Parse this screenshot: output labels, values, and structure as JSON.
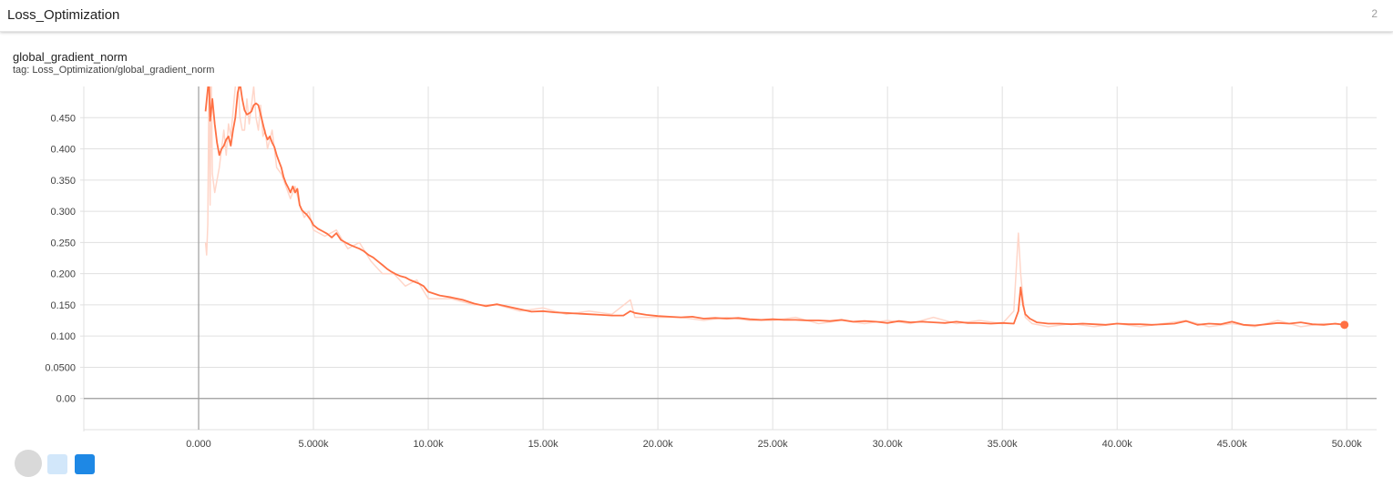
{
  "header": {
    "title": "Loss_Optimization",
    "count": "2"
  },
  "card": {
    "title": "global_gradient_norm",
    "tag": "tag: Loss_Optimization/global_gradient_norm"
  },
  "colors": {
    "smoothed": "#ff7043",
    "raw": "#ffd6c9",
    "grid": "#e0e0e0",
    "axis": "#9e9e9e"
  },
  "chart_data": {
    "type": "line",
    "title": "global_gradient_norm",
    "xlabel": "",
    "ylabel": "",
    "xlim": [
      -5000,
      51300
    ],
    "ylim": [
      -0.05,
      0.5
    ],
    "grid": true,
    "x_ticks": [
      0,
      5000,
      10000,
      15000,
      20000,
      25000,
      30000,
      35000,
      40000,
      45000,
      50000
    ],
    "x_tick_labels": [
      "0.000",
      "5.000k",
      "10.00k",
      "15.00k",
      "20.00k",
      "25.00k",
      "30.00k",
      "35.00k",
      "40.00k",
      "45.00k",
      "50.00k"
    ],
    "y_ticks": [
      0,
      0.05,
      0.1,
      0.15,
      0.2,
      0.25,
      0.3,
      0.35,
      0.4,
      0.45
    ],
    "y_tick_labels": [
      "0.00",
      "0.0500",
      "0.100",
      "0.150",
      "0.200",
      "0.250",
      "0.300",
      "0.350",
      "0.400",
      "0.450"
    ],
    "series": [
      {
        "style": "smoothed",
        "x": [
          300,
          450,
          500,
          600,
          700,
          800,
          900,
          1000,
          1100,
          1200,
          1300,
          1400,
          1500,
          1600,
          1700,
          1800,
          1900,
          2000,
          2100,
          2200,
          2300,
          2400,
          2500,
          2600,
          2700,
          2800,
          2900,
          3000,
          3100,
          3200,
          3300,
          3400,
          3500,
          3600,
          3700,
          3800,
          3900,
          4000,
          4100,
          4200,
          4300,
          4400,
          4500,
          4600,
          4700,
          4800,
          4900,
          5000,
          5200,
          5400,
          5600,
          5800,
          6000,
          6200,
          6400,
          6600,
          6800,
          7000,
          7200,
          7400,
          7600,
          7800,
          8000,
          8200,
          8400,
          8600,
          8800,
          9000,
          9200,
          9400,
          9600,
          9800,
          10000,
          10500,
          11000,
          11500,
          12000,
          12500,
          13000,
          13500,
          14000,
          14500,
          15000,
          15500,
          16000,
          16500,
          17000,
          17500,
          18000,
          18500,
          18800,
          19000,
          19500,
          20000,
          20500,
          21000,
          21500,
          22000,
          22500,
          23000,
          23500,
          24000,
          24500,
          25000,
          25500,
          26000,
          26500,
          27000,
          27500,
          28000,
          28500,
          29000,
          29500,
          30000,
          30500,
          31000,
          31500,
          32000,
          32500,
          33000,
          33500,
          34000,
          34500,
          35000,
          35500,
          35700,
          35800,
          35900,
          36000,
          36200,
          36500,
          37000,
          37500,
          38000,
          38500,
          39000,
          39500,
          40000,
          40500,
          41000,
          41500,
          42000,
          42500,
          43000,
          43500,
          44000,
          44500,
          45000,
          45500,
          46000,
          46500,
          47000,
          47500,
          48000,
          48500,
          49000,
          49500,
          49900
        ],
        "y": [
          0.46,
          0.515,
          0.445,
          0.48,
          0.44,
          0.41,
          0.39,
          0.4,
          0.405,
          0.415,
          0.42,
          0.405,
          0.43,
          0.45,
          0.49,
          0.505,
          0.48,
          0.462,
          0.455,
          0.457,
          0.46,
          0.47,
          0.473,
          0.47,
          0.455,
          0.44,
          0.425,
          0.415,
          0.42,
          0.41,
          0.403,
          0.39,
          0.38,
          0.37,
          0.355,
          0.345,
          0.338,
          0.33,
          0.34,
          0.33,
          0.336,
          0.31,
          0.302,
          0.298,
          0.295,
          0.29,
          0.285,
          0.278,
          0.272,
          0.268,
          0.264,
          0.258,
          0.265,
          0.254,
          0.25,
          0.246,
          0.243,
          0.24,
          0.236,
          0.23,
          0.226,
          0.22,
          0.214,
          0.208,
          0.203,
          0.199,
          0.196,
          0.194,
          0.19,
          0.187,
          0.184,
          0.18,
          0.171,
          0.165,
          0.162,
          0.158,
          0.152,
          0.148,
          0.151,
          0.147,
          0.143,
          0.139,
          0.14,
          0.138,
          0.137,
          0.136,
          0.135,
          0.134,
          0.133,
          0.133,
          0.14,
          0.137,
          0.134,
          0.132,
          0.131,
          0.13,
          0.131,
          0.128,
          0.129,
          0.128,
          0.129,
          0.127,
          0.126,
          0.127,
          0.126,
          0.126,
          0.125,
          0.125,
          0.124,
          0.126,
          0.123,
          0.124,
          0.123,
          0.121,
          0.124,
          0.122,
          0.123,
          0.122,
          0.121,
          0.123,
          0.121,
          0.121,
          0.12,
          0.121,
          0.12,
          0.14,
          0.178,
          0.15,
          0.135,
          0.128,
          0.122,
          0.12,
          0.12,
          0.119,
          0.12,
          0.119,
          0.118,
          0.12,
          0.119,
          0.119,
          0.118,
          0.119,
          0.12,
          0.124,
          0.118,
          0.12,
          0.119,
          0.123,
          0.118,
          0.117,
          0.119,
          0.121,
          0.12,
          0.122,
          0.119,
          0.118,
          0.12,
          0.118
        ]
      },
      {
        "style": "raw",
        "x": [
          300,
          350,
          400,
          450,
          500,
          550,
          600,
          700,
          800,
          900,
          1000,
          1100,
          1200,
          1300,
          1400,
          1500,
          1600,
          1700,
          1800,
          1900,
          2000,
          2100,
          2200,
          2300,
          2400,
          2500,
          2600,
          2700,
          2800,
          2900,
          3000,
          3200,
          3400,
          3600,
          3800,
          4000,
          4200,
          4400,
          4600,
          4800,
          5000,
          5500,
          6000,
          6500,
          7000,
          7500,
          8000,
          8500,
          9000,
          9500,
          10000,
          11000,
          12000,
          13000,
          14000,
          15000,
          16000,
          17000,
          18000,
          18800,
          19000,
          20000,
          21000,
          22000,
          23000,
          24000,
          25000,
          26000,
          27000,
          28000,
          29000,
          30000,
          31000,
          32000,
          33000,
          34000,
          35000,
          35500,
          35700,
          35800,
          35900,
          36000,
          36300,
          37000,
          38000,
          39000,
          40000,
          41000,
          42000,
          43000,
          44000,
          45000,
          46000,
          47000,
          48000,
          49000,
          49900
        ],
        "y": [
          0.25,
          0.23,
          0.28,
          0.52,
          0.31,
          0.52,
          0.36,
          0.33,
          0.35,
          0.37,
          0.4,
          0.43,
          0.39,
          0.44,
          0.42,
          0.46,
          0.5,
          0.52,
          0.45,
          0.43,
          0.43,
          0.48,
          0.44,
          0.47,
          0.5,
          0.45,
          0.43,
          0.47,
          0.42,
          0.43,
          0.4,
          0.43,
          0.37,
          0.36,
          0.34,
          0.32,
          0.34,
          0.31,
          0.29,
          0.3,
          0.27,
          0.26,
          0.27,
          0.24,
          0.25,
          0.22,
          0.2,
          0.2,
          0.18,
          0.19,
          0.16,
          0.16,
          0.15,
          0.15,
          0.14,
          0.145,
          0.135,
          0.14,
          0.135,
          0.158,
          0.13,
          0.13,
          0.13,
          0.125,
          0.13,
          0.125,
          0.125,
          0.13,
          0.12,
          0.125,
          0.12,
          0.125,
          0.12,
          0.13,
          0.12,
          0.125,
          0.12,
          0.14,
          0.265,
          0.2,
          0.16,
          0.13,
          0.12,
          0.115,
          0.12,
          0.115,
          0.12,
          0.115,
          0.12,
          0.125,
          0.115,
          0.12,
          0.115,
          0.125,
          0.115,
          0.12,
          0.118
        ]
      }
    ],
    "last_point": {
      "x": 49900,
      "y": 0.118
    }
  },
  "controls": [
    {
      "name": "expand-button",
      "color": "#1e88e5",
      "opacity": 0.2
    },
    {
      "name": "toggle-log-scale-button",
      "color": "#1e88e5",
      "opacity": 1.0
    }
  ]
}
